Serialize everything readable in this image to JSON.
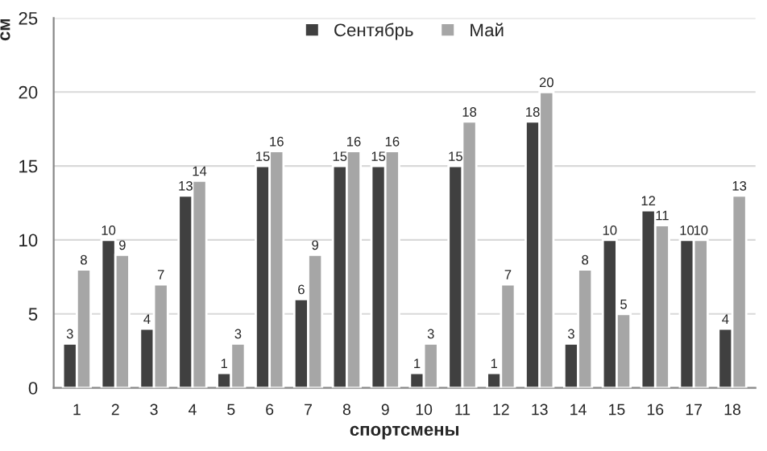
{
  "chart_data": {
    "type": "bar",
    "xlabel": "спортсмены",
    "ylabel": "см",
    "categories": [
      "1",
      "2",
      "3",
      "4",
      "5",
      "6",
      "7",
      "8",
      "9",
      "10",
      "11",
      "12",
      "13",
      "14",
      "15",
      "16",
      "17",
      "18"
    ],
    "series": [
      {
        "name": "Сентябрь",
        "color": "#404040",
        "values": [
          3,
          10,
          4,
          13,
          1,
          15,
          6,
          15,
          15,
          1,
          15,
          1,
          18,
          3,
          10,
          12,
          10,
          4
        ]
      },
      {
        "name": "Май",
        "color": "#a6a6a6",
        "values": [
          8,
          9,
          7,
          14,
          3,
          16,
          9,
          16,
          16,
          3,
          18,
          7,
          20,
          8,
          5,
          11,
          10,
          13
        ]
      }
    ],
    "ylim": [
      0,
      25
    ],
    "yticks": [
      0,
      5,
      10,
      15,
      20,
      25
    ],
    "grid": "y",
    "legend": "top",
    "data_labels": true
  }
}
